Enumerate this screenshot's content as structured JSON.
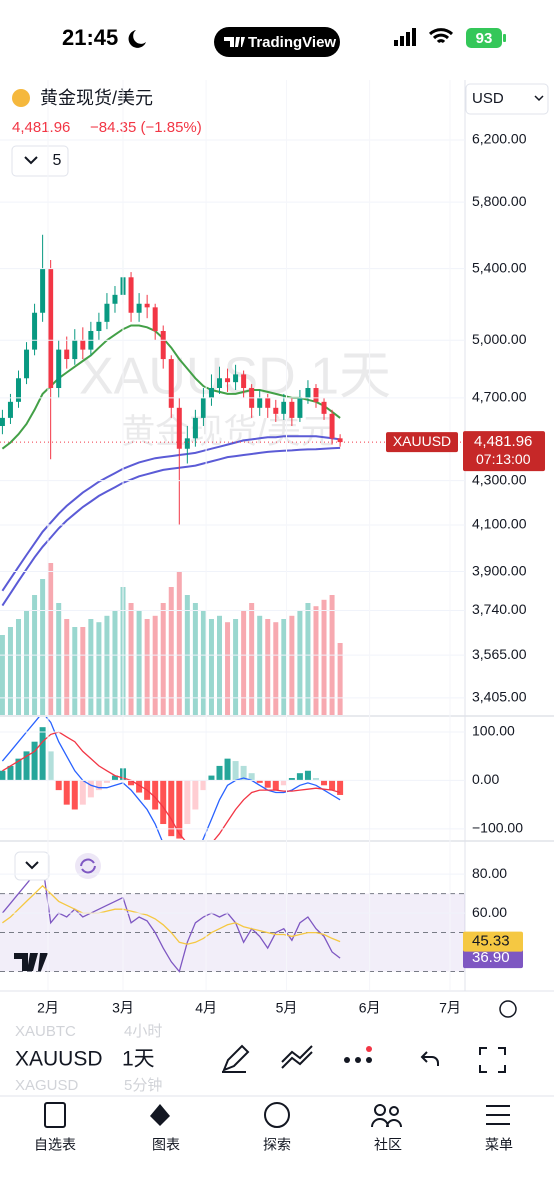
{
  "status_bar": {
    "time": "21:45",
    "app": "TradingView",
    "battery": "93"
  },
  "header": {
    "symbol": "黄金现货/美元",
    "price": "4,481.96",
    "change": "−84.35 (−1.85%)",
    "currency": "USD",
    "indicator_count": "5"
  },
  "watermark": {
    "symbol": "XAUUSD 1天",
    "name": "黄金现货/美元"
  },
  "chart_data": [
    {
      "type": "candlestick",
      "log": true,
      "up_color": "#089981",
      "down_color": "#f23645",
      "x": [
        15,
        18,
        21,
        24,
        27,
        30,
        33,
        36,
        39,
        42,
        45,
        48,
        51,
        54,
        57,
        60,
        63,
        66,
        69,
        72,
        75,
        78,
        81,
        84,
        87,
        90,
        93,
        96,
        99,
        102,
        105,
        108,
        111,
        114,
        117,
        120,
        123,
        126,
        129,
        132,
        135,
        138,
        141
      ],
      "open": [
        4560,
        4600,
        4680,
        4800,
        4950,
        5150,
        5400,
        4750,
        4950,
        4900,
        5000,
        4950,
        5050,
        5100,
        5200,
        5250,
        5350,
        5150,
        5200,
        5180,
        5050,
        4900,
        4650,
        4450,
        4500,
        4600,
        4700,
        4750,
        4800,
        4780,
        4820,
        4750,
        4650,
        4700,
        4650,
        4620,
        4680,
        4600,
        4700,
        4750,
        4680,
        4620,
        4500
      ],
      "high": [
        4640,
        4720,
        4840,
        4990,
        5200,
        5600,
        5450,
        5000,
        5020,
        5060,
        5070,
        5100,
        5150,
        5260,
        5300,
        5450,
        5380,
        5260,
        5250,
        5200,
        5080,
        4920,
        4700,
        4560,
        4640,
        4750,
        4820,
        4860,
        4850,
        4870,
        4840,
        4770,
        4740,
        4720,
        4690,
        4720,
        4700,
        4740,
        4790,
        4770,
        4700,
        4640,
        4520
      ],
      "low": [
        4520,
        4570,
        4650,
        4770,
        4920,
        5100,
        4400,
        4700,
        4850,
        4870,
        4900,
        4920,
        5000,
        5060,
        5150,
        5200,
        5100,
        5100,
        5120,
        5000,
        4850,
        4600,
        4100,
        4380,
        4460,
        4560,
        4660,
        4720,
        4730,
        4740,
        4700,
        4600,
        4610,
        4600,
        4580,
        4590,
        4560,
        4580,
        4670,
        4650,
        4590,
        4470,
        4460
      ],
      "close": [
        4600,
        4680,
        4800,
        4950,
        5150,
        5400,
        4750,
        4950,
        4900,
        5000,
        4950,
        5050,
        5100,
        5200,
        5250,
        5350,
        5150,
        5200,
        5180,
        5050,
        4900,
        4650,
        4450,
        4500,
        4600,
        4700,
        4750,
        4800,
        4780,
        4820,
        4750,
        4650,
        4700,
        4650,
        4620,
        4680,
        4600,
        4700,
        4750,
        4680,
        4620,
        4500,
        4481.96
      ],
      "series": [
        {
          "color": "#43a047",
          "values": [
            4450,
            4480,
            4520,
            4570,
            4640,
            4720,
            4760,
            4800,
            4830,
            4860,
            4890,
            4920,
            4960,
            5000,
            5030,
            5060,
            5080,
            5080,
            5070,
            5050,
            5010,
            4960,
            4900,
            4850,
            4800,
            4760,
            4740,
            4730,
            4720,
            4720,
            4730,
            4740,
            4740,
            4730,
            4720,
            4710,
            4700,
            4700,
            4690,
            4680,
            4660,
            4630,
            4600
          ]
        },
        {
          "color": "#5b5bd6",
          "values": [
            3820,
            3870,
            3920,
            3970,
            4020,
            4070,
            4110,
            4150,
            4185,
            4215,
            4245,
            4270,
            4295,
            4315,
            4335,
            4355,
            4370,
            4385,
            4395,
            4405,
            4410,
            4415,
            4420,
            4425,
            4430,
            4440,
            4450,
            4460,
            4470,
            4480,
            4490,
            4495,
            4500,
            4505,
            4505,
            4510,
            4510,
            4510,
            4510,
            4510,
            4505,
            4500,
            4495
          ]
        },
        {
          "color": "#5b5bd6",
          "values": [
            3760,
            3810,
            3860,
            3910,
            3960,
            4005,
            4045,
            4085,
            4120,
            4150,
            4180,
            4205,
            4230,
            4250,
            4270,
            4290,
            4305,
            4320,
            4330,
            4340,
            4350,
            4355,
            4360,
            4365,
            4370,
            4380,
            4390,
            4400,
            4410,
            4415,
            4420,
            4425,
            4430,
            4435,
            4438,
            4440,
            4442,
            4445,
            4447,
            4448,
            4450,
            4452,
            4454
          ]
        }
      ],
      "ylim": [
        3343,
        6613
      ],
      "yticks": [
        {
          "value": 6200,
          "label": "6,200.00"
        },
        {
          "value": 5800,
          "label": "5,800.00"
        },
        {
          "value": 5400,
          "label": "5,400.00"
        },
        {
          "value": 5000,
          "label": "5,000.00"
        },
        {
          "value": 4700,
          "label": "4,700.00"
        },
        {
          "value": 4300,
          "label": "4,300.00"
        },
        {
          "value": 4100,
          "label": "4,100.00"
        },
        {
          "value": 3900,
          "label": "3,900.00"
        },
        {
          "value": 3740,
          "label": "3,740.00"
        },
        {
          "value": 3565,
          "label": "3,565.00"
        },
        {
          "value": 3405,
          "label": "3,405.00"
        }
      ],
      "xlim": [
        14.1,
        187.6
      ],
      "xticks": [
        {
          "value": 32,
          "label": "2月"
        },
        {
          "value": 60,
          "label": "3月"
        },
        {
          "value": 91,
          "label": "4月"
        },
        {
          "value": 121,
          "label": "5月"
        },
        {
          "value": 152,
          "label": "6月"
        },
        {
          "value": 182,
          "label": "7月"
        }
      ],
      "last_price": {
        "symbol": "XAUUSD",
        "label": "4,481.96",
        "countdown": "07:13:00"
      }
    },
    {
      "type": "bar",
      "up_color": "#9ad7cf",
      "down_color": "#f7a9b0",
      "values": [
        50,
        55,
        60,
        65,
        75,
        85,
        95,
        70,
        60,
        55,
        55,
        60,
        58,
        62,
        65,
        80,
        70,
        65,
        60,
        62,
        70,
        80,
        90,
        75,
        70,
        65,
        60,
        62,
        58,
        60,
        65,
        70,
        62,
        60,
        58,
        60,
        62,
        65,
        70,
        68,
        72,
        75,
        45
      ],
      "ylim": [
        0,
        100
      ]
    },
    {
      "type": "macd",
      "histogram": [
        20,
        30,
        45,
        60,
        80,
        110,
        60,
        -20,
        -50,
        -60,
        -50,
        -35,
        -20,
        -5,
        10,
        25,
        -10,
        -25,
        -40,
        -60,
        -90,
        -115,
        -120,
        -90,
        -60,
        -20,
        10,
        30,
        45,
        40,
        30,
        15,
        -5,
        -15,
        -20,
        -10,
        5,
        15,
        20,
        5,
        -10,
        -20,
        -30
      ],
      "series": [
        {
          "color": "#2962ff",
          "values": [
            40,
            60,
            80,
            100,
            120,
            140,
            120,
            80,
            50,
            20,
            0,
            -10,
            -15,
            -15,
            -10,
            -5,
            -20,
            -40,
            -60,
            -90,
            -130,
            -170,
            -200,
            -190,
            -160,
            -120,
            -80,
            -40,
            -10,
            0,
            5,
            0,
            -10,
            -20,
            -25,
            -25,
            -20,
            -10,
            -5,
            -10,
            -20,
            -30,
            -40
          ]
        },
        {
          "color": "#f23645",
          "values": [
            20,
            30,
            40,
            50,
            60,
            80,
            95,
            100,
            90,
            80,
            60,
            45,
            30,
            20,
            10,
            5,
            0,
            -10,
            -20,
            -35,
            -55,
            -80,
            -110,
            -130,
            -145,
            -145,
            -130,
            -110,
            -85,
            -60,
            -40,
            -25,
            -20,
            -20,
            -20,
            -22,
            -22,
            -20,
            -18,
            -16,
            -18,
            -20,
            -25
          ]
        }
      ],
      "ylim": [
        -123,
        131
      ],
      "yticks": [
        {
          "value": 100,
          "label": "100.00"
        },
        {
          "value": 0,
          "label": "0.00"
        },
        {
          "value": -100,
          "label": "−100.00"
        }
      ]
    },
    {
      "type": "rsi",
      "band": [
        30,
        70
      ],
      "levels": [
        30,
        50,
        70
      ],
      "series": [
        {
          "color": "#7e57c2",
          "label_color": "#ffffff",
          "last_label": "36.90",
          "values": [
            60,
            65,
            70,
            75,
            80,
            85,
            55,
            60,
            58,
            62,
            58,
            60,
            62,
            64,
            66,
            68,
            55,
            58,
            56,
            50,
            42,
            35,
            30,
            45,
            55,
            58,
            60,
            58,
            60,
            55,
            45,
            52,
            48,
            42,
            50,
            52,
            46,
            55,
            58,
            52,
            48,
            40,
            36.9
          ]
        },
        {
          "color": "#f5c842",
          "label_color": "#131722",
          "last_label": "45.33",
          "values": [
            55,
            58,
            62,
            66,
            70,
            74,
            70,
            66,
            64,
            62,
            60,
            60,
            60,
            61,
            62,
            62,
            61,
            60,
            59,
            57,
            54,
            50,
            45,
            44,
            45,
            47,
            50,
            52,
            54,
            55,
            53,
            52,
            51,
            50,
            49,
            49,
            48,
            49,
            50,
            50,
            49,
            47,
            45.33
          ]
        }
      ],
      "ylim": [
        20.5,
        96.5
      ],
      "yticks": [
        {
          "value": 80,
          "label": "80.00"
        },
        {
          "value": 60,
          "label": "60.00"
        }
      ]
    }
  ],
  "symbol_bar": {
    "prev": "XAUBTC",
    "prev_interval": "4小时",
    "symbol": "XAUUSD",
    "interval": "1天",
    "next": "XAGUSD",
    "next_interval": "5分钟"
  },
  "tabs": [
    "自选表",
    "图表",
    "探索",
    "社区",
    "菜单"
  ]
}
